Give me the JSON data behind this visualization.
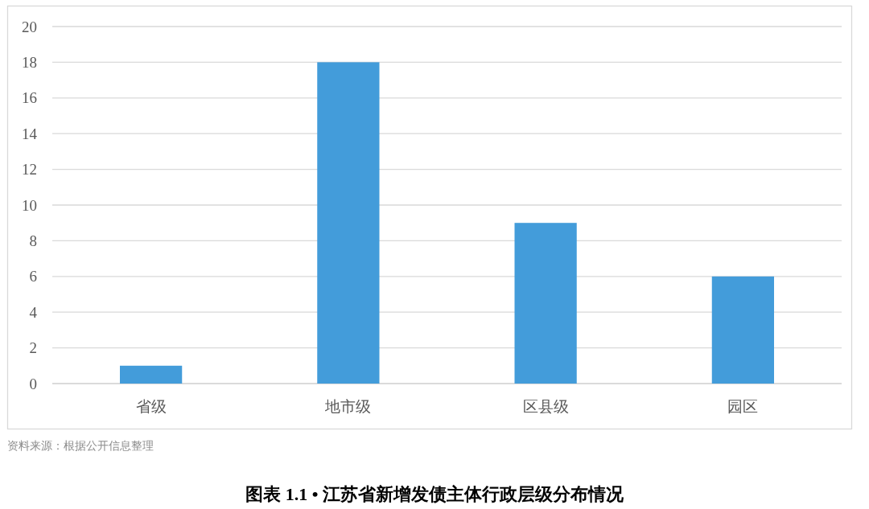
{
  "chart_data": {
    "type": "bar",
    "title": "图表 1.1 • 江苏省新增发债主体行政层级分布情况",
    "categories": [
      "省级",
      "地市级",
      "区县级",
      "园区"
    ],
    "values": [
      1,
      18,
      9,
      6
    ],
    "color": "#439cda",
    "ylim": [
      0,
      20
    ],
    "yticks": [
      0,
      2,
      4,
      6,
      8,
      10,
      12,
      14,
      16,
      18,
      20
    ],
    "grid": "y",
    "annotations": [
      "资料来源：根据公开信息整理"
    ]
  }
}
